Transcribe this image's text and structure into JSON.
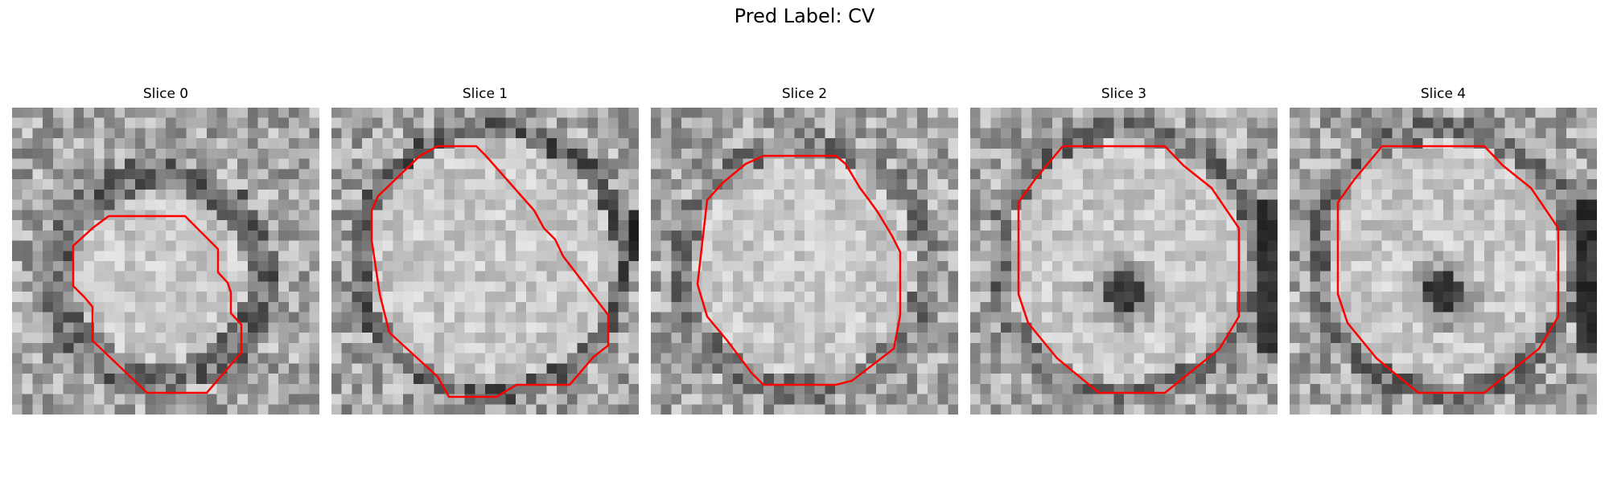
{
  "figure": {
    "title": "Pred Label: CV"
  },
  "colors": {
    "contour": "#ff0000",
    "background": "#ffffff"
  },
  "slices": [
    {
      "title": "Slice 0"
    },
    {
      "title": "Slice 1"
    },
    {
      "title": "Slice 2"
    },
    {
      "title": "Slice 3"
    },
    {
      "title": "Slice 4"
    }
  ]
}
